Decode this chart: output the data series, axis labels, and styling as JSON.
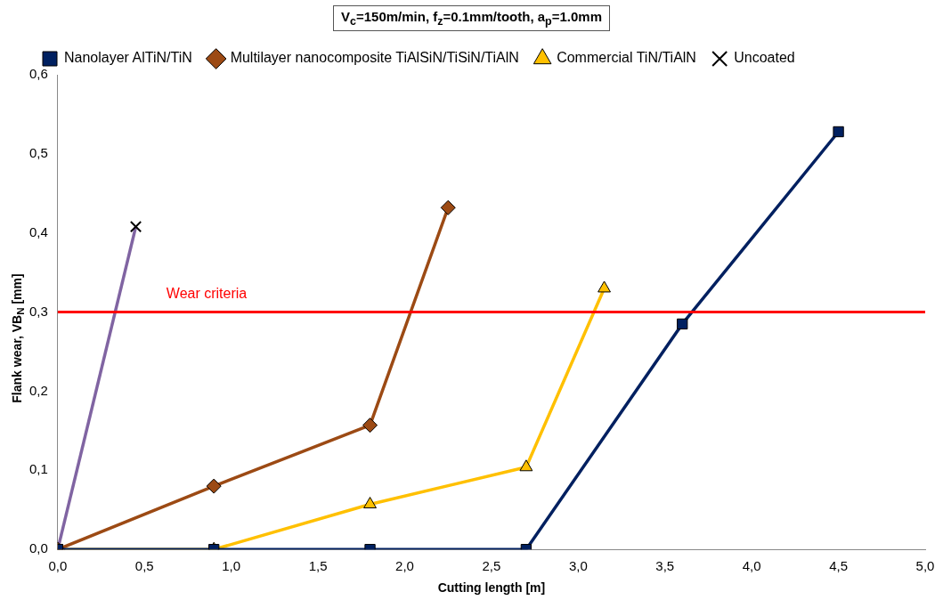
{
  "chart_data": {
    "type": "line",
    "title": "V$_{c}$=150m/min, f$_{z}$=0.1mm/tooth, a$_{p}$=1.0mm",
    "xlabel": "Cutting length [m]",
    "ylabel": "Flank wear, VB$_{N}$ [mm]",
    "series": [
      {
        "name": "Nanolayer AlTiN/TiN",
        "color": "#002060",
        "marker": "square",
        "x": [
          0,
          0.9,
          1.8,
          2.7,
          3.6,
          4.5
        ],
        "values": [
          0,
          0,
          0,
          0,
          0.285,
          0.528
        ]
      },
      {
        "name": "Multilayer nanocomposite TiAlSiN/TiSiN/TiAlN",
        "color": "#9c4a14",
        "marker": "diamond",
        "x": [
          0,
          0.9,
          1.8,
          2.25
        ],
        "values": [
          0,
          0.08,
          0.157,
          0.432
        ]
      },
      {
        "name": "Commercial TiN/TiAlN",
        "color": "#ffc000",
        "marker": "triangle",
        "x": [
          0,
          0.9,
          1.8,
          2.7,
          3.15
        ],
        "values": [
          0,
          0,
          0.057,
          0.104,
          0.33
        ]
      },
      {
        "name": "Uncoated",
        "color": "#8064a2",
        "marker": "cross",
        "x": [
          0,
          0.45
        ],
        "values": [
          0,
          0.408
        ]
      }
    ],
    "xlim": [
      0,
      5
    ],
    "xticks": [
      {
        "value": 0,
        "label": "0,0"
      },
      {
        "value": 0.5,
        "label": "0,5"
      },
      {
        "value": 1,
        "label": "1,0"
      },
      {
        "value": 1.5,
        "label": "1,5"
      },
      {
        "value": 2,
        "label": "2,0"
      },
      {
        "value": 2.5,
        "label": "2,5"
      },
      {
        "value": 3,
        "label": "3,0"
      },
      {
        "value": 3.5,
        "label": "3,5"
      },
      {
        "value": 4,
        "label": "4,0"
      },
      {
        "value": 4.5,
        "label": "4,5"
      },
      {
        "value": 5,
        "label": "5,0"
      }
    ],
    "ylim": [
      0,
      0.6
    ],
    "yticks": [
      {
        "value": 0,
        "label": "0,0"
      },
      {
        "value": 0.1,
        "label": "0,1"
      },
      {
        "value": 0.2,
        "label": "0,2"
      },
      {
        "value": 0.3,
        "label": "0,3"
      },
      {
        "value": 0.4,
        "label": "0,4"
      },
      {
        "value": 0.5,
        "label": "0,5"
      },
      {
        "value": 0.6,
        "label": "0,6"
      }
    ],
    "ref_lines": [
      {
        "axis": "y",
        "value": 0.3,
        "label": "Wear criteria",
        "color": "#ff0000"
      }
    ],
    "grid": false,
    "legend": "top",
    "line_style": "solid"
  }
}
